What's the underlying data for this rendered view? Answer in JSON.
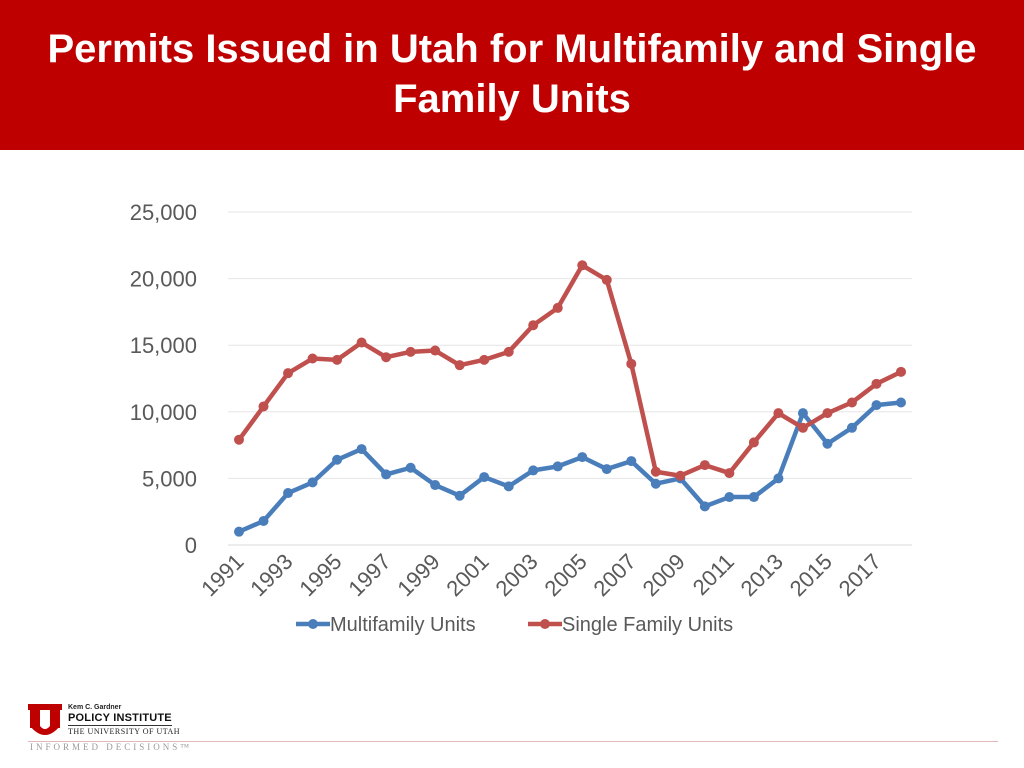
{
  "slide": {
    "title": "Permits Issued in Utah for Multifamily and Single Family Units"
  },
  "footer": {
    "institute_small": "Kem C. Gardner",
    "institute_name": "POLICY INSTITUTE",
    "university": "THE UNIVERSITY OF UTAH",
    "tagline": "INFORMED DECISIONS™"
  },
  "colors": {
    "title_bar": "#be0000",
    "multifamily": "#4a7ebb",
    "single_family": "#c0504d"
  },
  "chart_data": {
    "type": "line",
    "title": "",
    "xlabel": "",
    "ylabel": "",
    "x": [
      1991,
      1992,
      1993,
      1994,
      1995,
      1996,
      1997,
      1998,
      1999,
      2000,
      2001,
      2002,
      2003,
      2004,
      2005,
      2006,
      2007,
      2008,
      2009,
      2010,
      2011,
      2012,
      2013,
      2014,
      2015,
      2016,
      2017,
      2018
    ],
    "x_tick_labels": [
      "1991",
      "1993",
      "1995",
      "1997",
      "1999",
      "2001",
      "2003",
      "2005",
      "2007",
      "2009",
      "2011",
      "2013",
      "2015",
      "2017"
    ],
    "y_tick_labels": [
      "25,000",
      "20,000",
      "15,000",
      "10,000",
      "5,000",
      "0"
    ],
    "ylim": [
      0,
      25000
    ],
    "grid": true,
    "legend": "bottom",
    "series": [
      {
        "name": "Multifamily Units",
        "values": [
          1000,
          1800,
          3900,
          4700,
          6400,
          7200,
          5300,
          5800,
          4500,
          3700,
          5100,
          4400,
          5600,
          5900,
          6600,
          5700,
          6300,
          4600,
          5000,
          2900,
          3600,
          3600,
          5000,
          9900,
          7600,
          8800,
          10500,
          10700
        ]
      },
      {
        "name": "Single Family Units",
        "values": [
          7900,
          10400,
          12900,
          14000,
          13900,
          15200,
          14100,
          14500,
          14600,
          13500,
          13900,
          14500,
          16500,
          17800,
          21000,
          19900,
          13600,
          5500,
          5200,
          6000,
          5400,
          7700,
          9900,
          8800,
          9900,
          10700,
          12100,
          13000
        ]
      }
    ]
  }
}
